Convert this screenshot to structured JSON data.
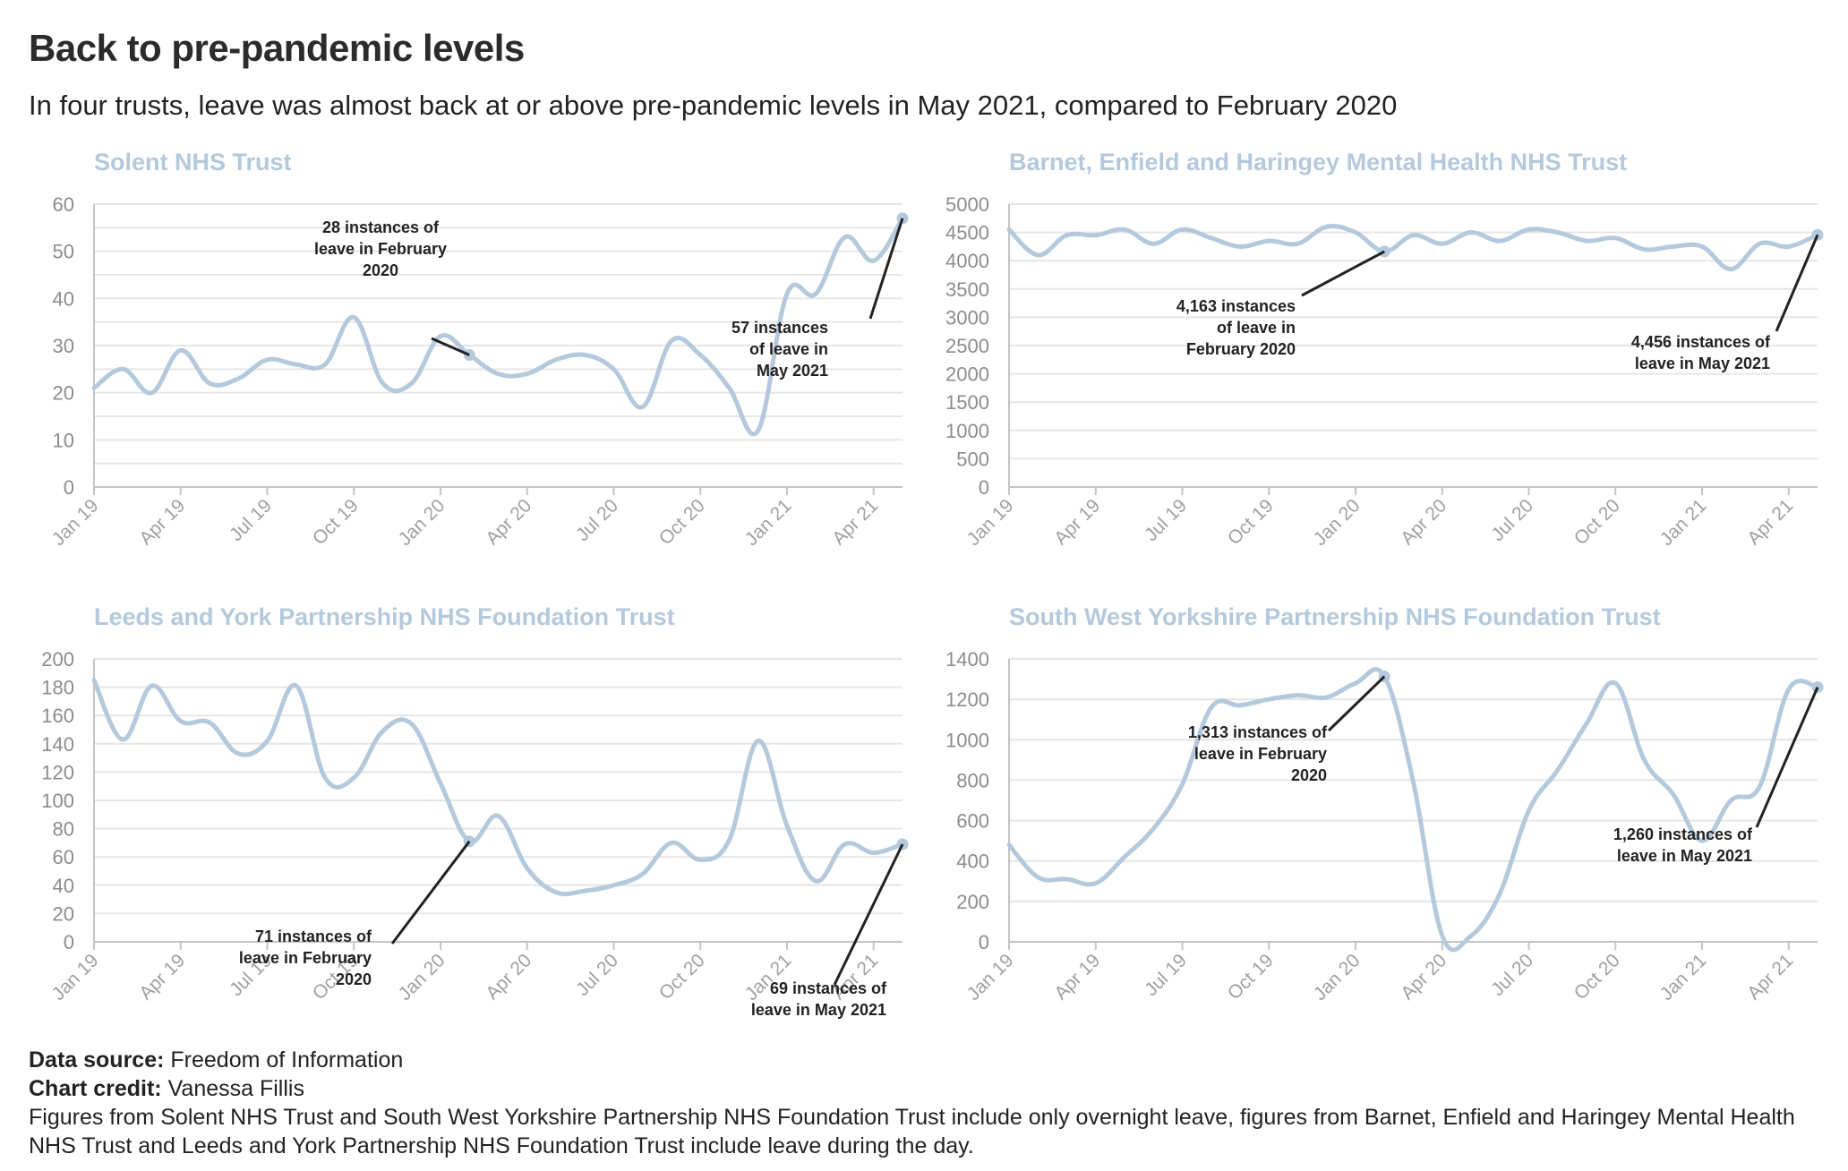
{
  "title": "Back to pre-pandemic levels",
  "subtitle": "In four trusts, leave was almost back at or above pre-pandemic levels in May 2021, compared to February 2020",
  "footer": {
    "source_label": "Data source:",
    "source_value": "Freedom of Information",
    "credit_label": "Chart credit:",
    "credit_value": "Vanessa Fillis",
    "note": "Figures from Solent NHS Trust and South West Yorkshire Partnership NHS Foundation Trust include only overnight leave, figures from Barnet, Enfield and Haringey Mental Health NHS Trust and Leeds and York Partnership NHS Foundation Trust include leave during the day."
  },
  "colors": {
    "line": "#b4c9dc",
    "grid": "#e6e6e6",
    "axis": "#c4c4c4",
    "annotation": "#222222"
  },
  "x_labels": [
    "Jan 19",
    "Apr 19",
    "Jul 19",
    "Oct 19",
    "Jan 20",
    "Apr 20",
    "Jul 20",
    "Oct 20",
    "Jan 21",
    "Apr 21"
  ],
  "chart_data": [
    {
      "type": "line",
      "title": "Solent NHS Trust",
      "x": [
        "2019-01",
        "2019-02",
        "2019-03",
        "2019-04",
        "2019-05",
        "2019-06",
        "2019-07",
        "2019-08",
        "2019-09",
        "2019-10",
        "2019-11",
        "2019-12",
        "2020-01",
        "2020-02",
        "2020-03",
        "2020-04",
        "2020-05",
        "2020-06",
        "2020-07",
        "2020-08",
        "2020-09",
        "2020-10",
        "2020-11",
        "2020-12",
        "2021-01",
        "2021-02",
        "2021-03",
        "2021-04",
        "2021-05"
      ],
      "values": [
        21,
        25,
        20,
        29,
        22,
        23,
        27,
        26,
        26,
        36,
        22,
        22,
        32,
        28,
        24,
        24,
        27,
        28,
        25,
        17,
        31,
        28,
        21,
        12,
        41,
        41,
        53,
        48,
        57
      ],
      "ylim": [
        0,
        60
      ],
      "yticks": [
        "0",
        "10",
        "20",
        "30",
        "40",
        "50",
        "60"
      ],
      "grid": true,
      "annotations": [
        {
          "lines": [
            "28 instances of",
            "leave in February",
            "2020"
          ],
          "point_index": 13
        },
        {
          "lines": [
            "57 instances",
            "of leave in",
            "May 2021"
          ],
          "point_index": 28
        }
      ]
    },
    {
      "type": "line",
      "title": "Barnet, Enfield and Haringey Mental Health NHS Trust",
      "x": [
        "2019-01",
        "2019-02",
        "2019-03",
        "2019-04",
        "2019-05",
        "2019-06",
        "2019-07",
        "2019-08",
        "2019-09",
        "2019-10",
        "2019-11",
        "2019-12",
        "2020-01",
        "2020-02",
        "2020-03",
        "2020-04",
        "2020-05",
        "2020-06",
        "2020-07",
        "2020-08",
        "2020-09",
        "2020-10",
        "2020-11",
        "2020-12",
        "2021-01",
        "2021-02",
        "2021-03",
        "2021-04",
        "2021-05"
      ],
      "values": [
        4550,
        4100,
        4450,
        4450,
        4550,
        4300,
        4550,
        4400,
        4250,
        4350,
        4300,
        4600,
        4500,
        4163,
        4450,
        4300,
        4500,
        4350,
        4550,
        4500,
        4350,
        4400,
        4200,
        4250,
        4250,
        3850,
        4300,
        4250,
        4456
      ],
      "ylim": [
        0,
        5000
      ],
      "yticks": [
        "0",
        "500",
        "1000",
        "1500",
        "2000",
        "2500",
        "3000",
        "3500",
        "4000",
        "4500",
        "5000"
      ],
      "grid": true,
      "annotations": [
        {
          "lines": [
            "4,163 instances",
            "of leave in",
            "February 2020"
          ],
          "point_index": 13
        },
        {
          "lines": [
            "4,456 instances of",
            "leave in May 2021"
          ],
          "point_index": 28
        }
      ]
    },
    {
      "type": "line",
      "title": "Leeds and York Partnership NHS Foundation Trust",
      "x": [
        "2019-01",
        "2019-02",
        "2019-03",
        "2019-04",
        "2019-05",
        "2019-06",
        "2019-07",
        "2019-08",
        "2019-09",
        "2019-10",
        "2019-11",
        "2019-12",
        "2020-01",
        "2020-02",
        "2020-03",
        "2020-04",
        "2020-05",
        "2020-06",
        "2020-07",
        "2020-08",
        "2020-09",
        "2020-10",
        "2020-11",
        "2020-12",
        "2021-01",
        "2021-02",
        "2021-03",
        "2021-04",
        "2021-05"
      ],
      "values": [
        185,
        143,
        181,
        156,
        155,
        133,
        142,
        181,
        116,
        116,
        149,
        154,
        112,
        71,
        89,
        52,
        35,
        36,
        40,
        48,
        70,
        58,
        72,
        142,
        82,
        43,
        69,
        63,
        69
      ],
      "ylim": [
        0,
        200
      ],
      "yticks": [
        "0",
        "20",
        "40",
        "60",
        "80",
        "100",
        "120",
        "140",
        "160",
        "180",
        "200"
      ],
      "grid": true,
      "annotations": [
        {
          "lines": [
            "71 instances of",
            "leave in February",
            "2020"
          ],
          "point_index": 13
        },
        {
          "lines": [
            "69 instances of",
            "leave in May 2021"
          ],
          "point_index": 28
        }
      ]
    },
    {
      "type": "line",
      "title": "South West Yorkshire Partnership NHS Foundation Trust",
      "x": [
        "2019-01",
        "2019-02",
        "2019-03",
        "2019-04",
        "2019-05",
        "2019-06",
        "2019-07",
        "2019-08",
        "2019-09",
        "2019-10",
        "2019-11",
        "2019-12",
        "2020-01",
        "2020-02",
        "2020-03",
        "2020-04",
        "2020-05",
        "2020-06",
        "2020-07",
        "2020-08",
        "2020-09",
        "2020-10",
        "2020-11",
        "2020-12",
        "2021-01",
        "2021-02",
        "2021-03",
        "2021-04",
        "2021-05"
      ],
      "values": [
        480,
        320,
        310,
        290,
        420,
        560,
        780,
        1160,
        1170,
        1200,
        1220,
        1210,
        1280,
        1313,
        790,
        30,
        30,
        240,
        650,
        850,
        1080,
        1280,
        900,
        730,
        500,
        700,
        770,
        1250,
        1260
      ],
      "ylim": [
        0,
        1400
      ],
      "yticks": [
        "0",
        "200",
        "400",
        "600",
        "800",
        "1000",
        "1200",
        "1400"
      ],
      "grid": true,
      "annotations": [
        {
          "lines": [
            "1,313 instances of",
            "leave in February",
            "2020"
          ],
          "point_index": 13
        },
        {
          "lines": [
            "1,260 instances of",
            "leave in May 2021"
          ],
          "point_index": 28
        }
      ]
    }
  ]
}
